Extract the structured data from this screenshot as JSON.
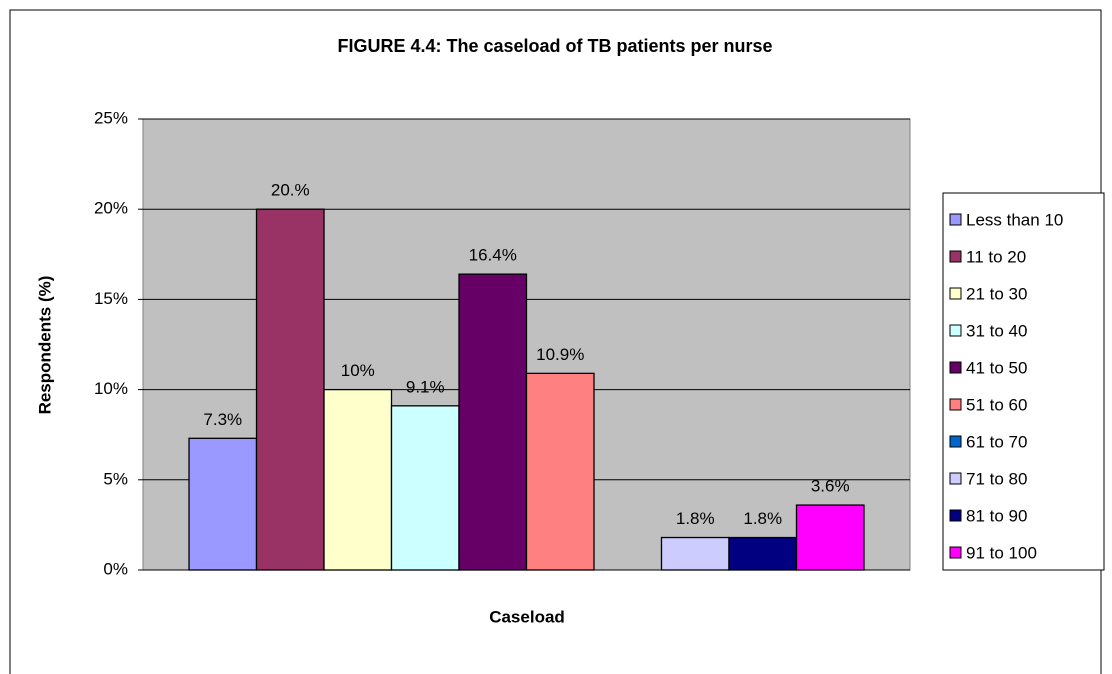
{
  "chart_data": {
    "type": "bar",
    "title": "FIGURE 4.4: The caseload of TB patients per nurse",
    "xlabel": "Caseload",
    "ylabel": "Respondents (%)",
    "categories": [
      null
    ],
    "ylim": [
      0,
      25
    ],
    "yticks": [
      {
        "value": 0,
        "label": "0%"
      },
      {
        "value": 5,
        "label": "5%"
      },
      {
        "value": 10,
        "label": "10%"
      },
      {
        "value": 15,
        "label": "15%"
      },
      {
        "value": 20,
        "label": "20%"
      },
      {
        "value": 25,
        "label": "25%"
      }
    ],
    "grid": true,
    "legend": "right",
    "series": [
      {
        "name": "Less than 10",
        "color": "#9999ff",
        "values": [
          7.3
        ],
        "value_labels": [
          "7.3%"
        ]
      },
      {
        "name": "11 to 20",
        "color": "#993366",
        "values": [
          20
        ],
        "value_labels": [
          "20.%"
        ]
      },
      {
        "name": "21 to 30",
        "color": "#ffffcc",
        "values": [
          10
        ],
        "value_labels": [
          "10%"
        ]
      },
      {
        "name": "31 to 40",
        "color": "#ccffff",
        "values": [
          9.1
        ],
        "value_labels": [
          "9.1%"
        ]
      },
      {
        "name": "41 to 50",
        "color": "#660066",
        "values": [
          16.4
        ],
        "value_labels": [
          "16.4%"
        ]
      },
      {
        "name": "51 to 60",
        "color": "#ff8080",
        "values": [
          10.9
        ],
        "value_labels": [
          "10.9%"
        ]
      },
      {
        "name": "61 to 70",
        "color": "#0066cc",
        "values": [
          0
        ],
        "value_labels": [
          null
        ]
      },
      {
        "name": "71 to 80",
        "color": "#ccccff",
        "values": [
          1.8
        ],
        "value_labels": [
          "1.8%"
        ]
      },
      {
        "name": "81 to 90",
        "color": "#000080",
        "values": [
          1.8
        ],
        "value_labels": [
          "1.8%"
        ]
      },
      {
        "name": "91 to 100",
        "color": "#ff00ff",
        "values": [
          3.6
        ],
        "value_labels": [
          "3.6%"
        ]
      }
    ]
  }
}
